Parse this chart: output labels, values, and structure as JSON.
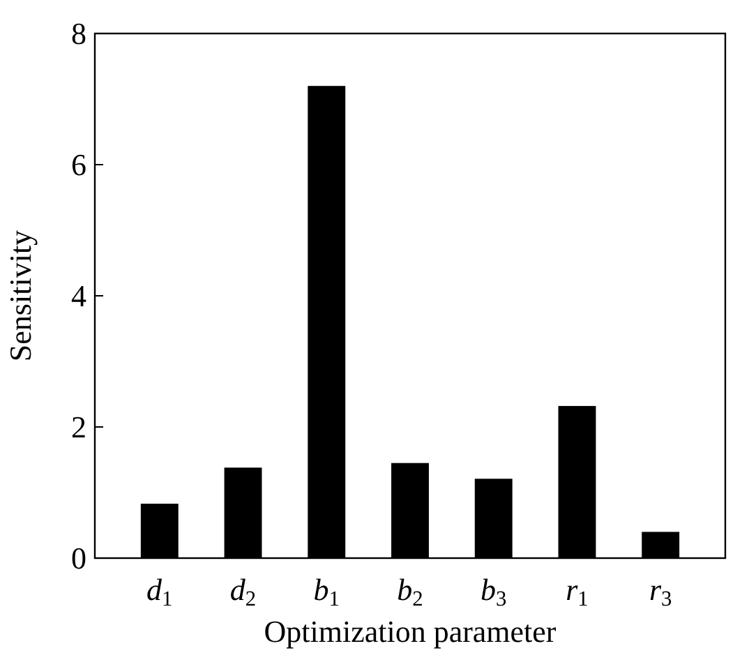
{
  "chart_data": {
    "type": "bar",
    "xlabel": "Optimization parameter",
    "ylabel": "Sensitivity",
    "categories": [
      "d$_{1}$",
      "d$_{2}$",
      "b$_{1}$",
      "b$_{2}$",
      "b$_{3}$",
      "r$_{1}$",
      "r$_{3}$"
    ],
    "values": [
      0.83,
      1.38,
      7.2,
      1.45,
      1.21,
      2.32,
      0.4
    ],
    "color": "#000000",
    "ylim": [
      0,
      8
    ],
    "yticks": [
      0,
      2,
      4,
      6,
      8
    ],
    "grid": false
  }
}
